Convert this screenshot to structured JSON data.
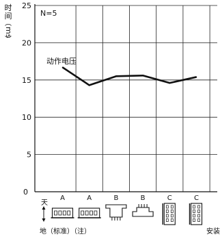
{
  "chart_data": {
    "type": "line",
    "ylabel": "时间",
    "yunit": "ms",
    "annotation_n": "N=5",
    "series": [
      {
        "name": "动作电压",
        "values": [
          16.7,
          14.3,
          15.5,
          15.6,
          14.6,
          15.4
        ]
      }
    ],
    "categories": [
      "A",
      "A",
      "B",
      "B",
      "C",
      "C"
    ],
    "yticks": [
      0,
      5,
      10,
      15,
      20,
      25
    ],
    "ylim": [
      0,
      25
    ],
    "grid": true,
    "orientation_label": "天",
    "footer_left": "地（标准）（注）",
    "footer_right": "安装"
  }
}
